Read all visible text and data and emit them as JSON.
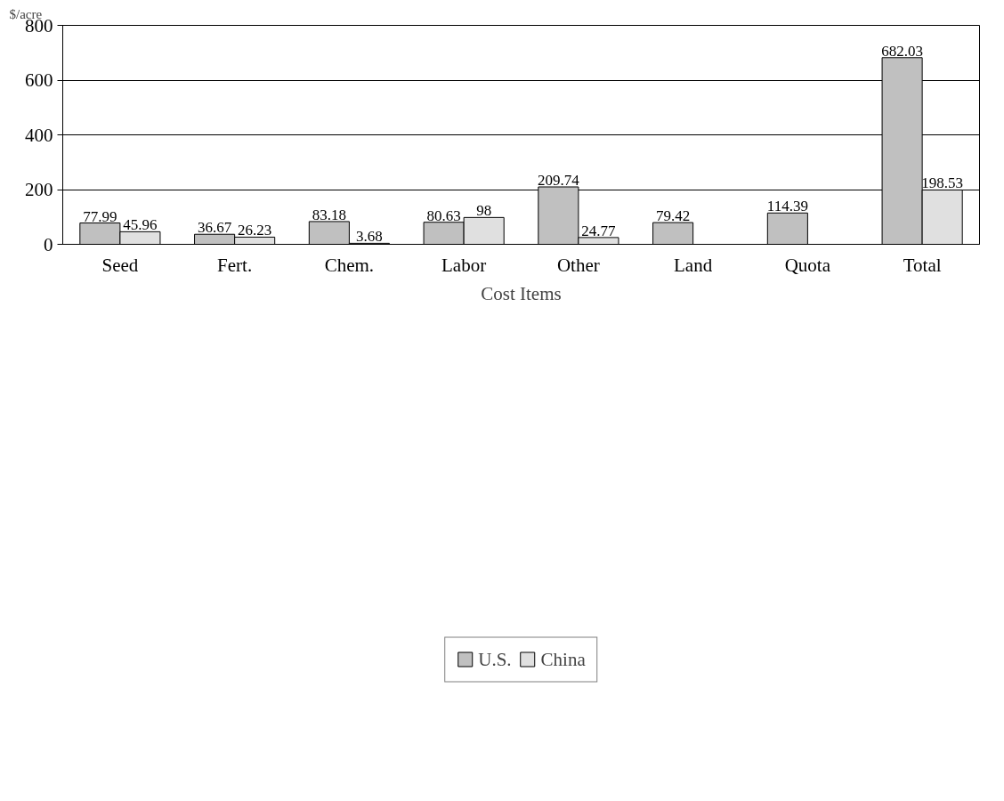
{
  "chart_data": {
    "type": "bar",
    "ylabel": "$/acre",
    "xlabel": "Cost Items",
    "categories": [
      "Seed",
      "Fert.",
      "Chem.",
      "Labor",
      "Other",
      "Land",
      "Quota",
      "Total"
    ],
    "series": [
      {
        "name": "U.S.",
        "color": "#c0c0c0",
        "values": [
          77.99,
          36.67,
          83.18,
          80.63,
          209.74,
          79.42,
          114.39,
          682.03
        ]
      },
      {
        "name": "China",
        "color": "#e0e0e0",
        "values": [
          45.96,
          26.23,
          3.68,
          98,
          24.77,
          null,
          null,
          198.53
        ]
      }
    ],
    "ylim": [
      0,
      800
    ],
    "yticks": [
      0,
      200,
      400,
      600,
      800
    ],
    "grid": "y",
    "legend": "bottom",
    "data_labels": true
  }
}
